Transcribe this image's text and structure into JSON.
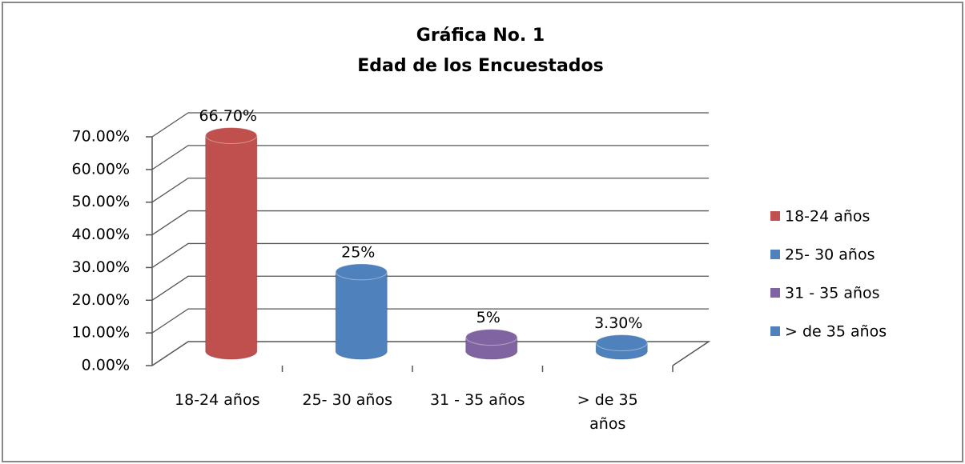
{
  "chart_data": {
    "type": "bar3d",
    "title": "Gráfica No. 1",
    "subtitle": "Edad de los Encuestados",
    "categories": [
      "18-24 años",
      "25- 30 años",
      "31 - 35 años",
      "> de 35 años"
    ],
    "values": [
      66.7,
      25,
      5,
      3.3
    ],
    "value_labels": [
      "66.70%",
      "25%",
      "5%",
      "3.30%"
    ],
    "colors": [
      "#c0504d",
      "#4f81bd",
      "#8064a2",
      "#4f81bd"
    ],
    "ylim": [
      0,
      70
    ],
    "yticks": [
      {
        "value": 0,
        "label": "0.00%"
      },
      {
        "value": 10,
        "label": "10.00%"
      },
      {
        "value": 20,
        "label": "20.00%"
      },
      {
        "value": 30,
        "label": "30.00%"
      },
      {
        "value": 40,
        "label": "40.00%"
      },
      {
        "value": 50,
        "label": "50.00%"
      },
      {
        "value": 60,
        "label": "60.00%"
      },
      {
        "value": 70,
        "label": "70.00%"
      }
    ],
    "grid": true,
    "legend": "right"
  }
}
